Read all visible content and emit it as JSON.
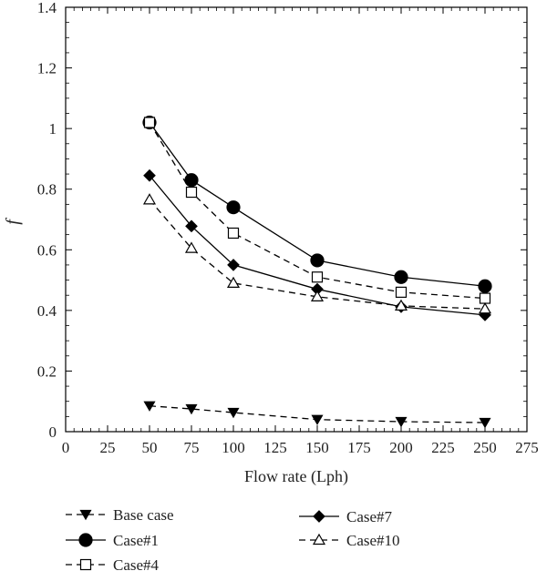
{
  "chart_data": {
    "type": "line",
    "title": "",
    "xlabel": "Flow rate (Lph)",
    "ylabel": "f",
    "xlim": [
      0,
      275
    ],
    "ylim": [
      0,
      1.4
    ],
    "xticks": [
      0,
      25,
      50,
      75,
      100,
      125,
      150,
      175,
      200,
      225,
      250,
      275
    ],
    "xtick_labels": [
      "0",
      "25",
      "50",
      "75",
      "100",
      "125",
      "150",
      "175",
      "200",
      "225",
      "250",
      "275"
    ],
    "yticks": [
      0,
      0.2,
      0.4,
      0.6,
      0.8,
      1.0,
      1.2,
      1.4
    ],
    "ytick_labels": [
      "0",
      "0.2",
      "0.4",
      "0.6",
      "0.8",
      "1",
      "1.2",
      "1.4"
    ],
    "grid": false,
    "legend_position": "below",
    "x": [
      50,
      75,
      100,
      150,
      200,
      250
    ],
    "series": [
      {
        "name": "Base case",
        "values": [
          0.085,
          0.075,
          0.063,
          0.04,
          0.033,
          0.03
        ],
        "marker": "triangle-down",
        "filled": true,
        "dash": true,
        "color": "#000000"
      },
      {
        "name": "Case#1",
        "values": [
          1.02,
          0.83,
          0.74,
          0.565,
          0.51,
          0.48
        ],
        "marker": "circle",
        "filled": true,
        "dash": false,
        "color": "#000000"
      },
      {
        "name": "Case#4",
        "values": [
          1.02,
          0.79,
          0.655,
          0.51,
          0.46,
          0.44
        ],
        "marker": "square",
        "filled": false,
        "dash": true,
        "color": "#000000"
      },
      {
        "name": "Case#7",
        "values": [
          0.845,
          0.678,
          0.55,
          0.47,
          0.412,
          0.385
        ],
        "marker": "diamond",
        "filled": true,
        "dash": false,
        "color": "#000000"
      },
      {
        "name": "Case#10",
        "values": [
          0.765,
          0.605,
          0.49,
          0.445,
          0.415,
          0.405
        ],
        "marker": "triangle-up",
        "filled": false,
        "dash": true,
        "color": "#000000"
      }
    ]
  }
}
